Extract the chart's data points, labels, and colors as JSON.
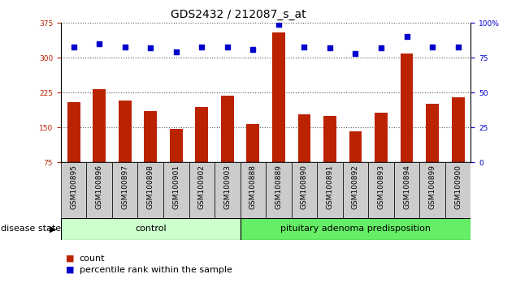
{
  "title": "GDS2432 / 212087_s_at",
  "samples": [
    "GSM100895",
    "GSM100896",
    "GSM100897",
    "GSM100898",
    "GSM100901",
    "GSM100902",
    "GSM100903",
    "GSM100888",
    "GSM100889",
    "GSM100890",
    "GSM100891",
    "GSM100892",
    "GSM100893",
    "GSM100894",
    "GSM100899",
    "GSM100900"
  ],
  "bar_values": [
    205,
    232,
    207,
    185,
    147,
    193,
    218,
    158,
    355,
    178,
    175,
    142,
    182,
    310,
    200,
    215
  ],
  "dot_values": [
    83,
    85,
    83,
    82,
    79,
    83,
    83,
    81,
    99,
    83,
    82,
    78,
    82,
    90,
    83,
    83
  ],
  "control_count": 7,
  "disease_count": 9,
  "ylim_left": [
    75,
    375
  ],
  "ylim_right": [
    0,
    100
  ],
  "yticks_left": [
    75,
    150,
    225,
    300,
    375
  ],
  "yticks_right": [
    0,
    25,
    50,
    75,
    100
  ],
  "ytick_labels_right": [
    "0",
    "25",
    "50",
    "75",
    "100%"
  ],
  "bar_color": "#bb2200",
  "dot_color": "#0000cc",
  "grid_color": "#555555",
  "bg_color": "#ffffff",
  "col_bg_color": "#cccccc",
  "control_label": "control",
  "disease_label": "pituitary adenoma predisposition",
  "disease_state_label": "disease state",
  "legend_bar": "count",
  "legend_dot": "percentile rank within the sample",
  "control_color": "#ccffcc",
  "disease_color": "#66ee66",
  "title_fontsize": 10,
  "tick_fontsize": 6.5,
  "label_fontsize": 8
}
